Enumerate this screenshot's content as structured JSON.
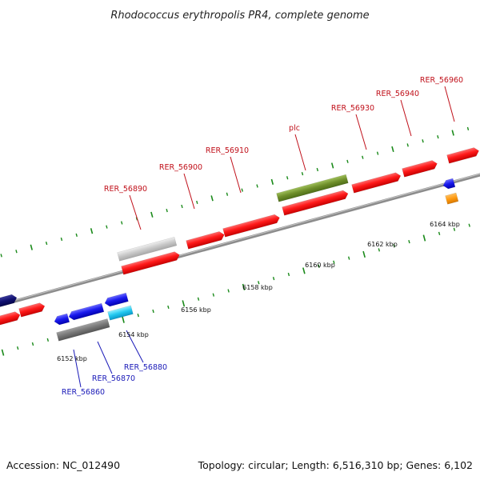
{
  "title": "Rhodococcus erythropolis PR4, complete genome",
  "footer": {
    "accession": "Accession: NC_012490",
    "summary": "Topology: circular; Length: 6,516,310 bp; Genes: 6,102"
  },
  "colors": {
    "forward_gene": "#ff1a1a",
    "reverse_gene": "#1a1aee",
    "backbone": "#8c8c8c",
    "tick": "#1a8a1a",
    "top_label": "#c0101a",
    "bottom_label": "#1a1ab8"
  },
  "ruler_labels": [
    "6152 kbp",
    "6154 kbp",
    "6156 kbp",
    "6158 kbp",
    "6160 kbp",
    "6162 kbp",
    "6164 kbp"
  ],
  "top_gene_labels": [
    "RER_56890",
    "RER_56900",
    "RER_56910",
    "plc",
    "RER_56930",
    "RER_56940",
    "RER_56960"
  ],
  "bottom_gene_labels": [
    "RER_56860",
    "RER_56870",
    "RER_56880"
  ]
}
